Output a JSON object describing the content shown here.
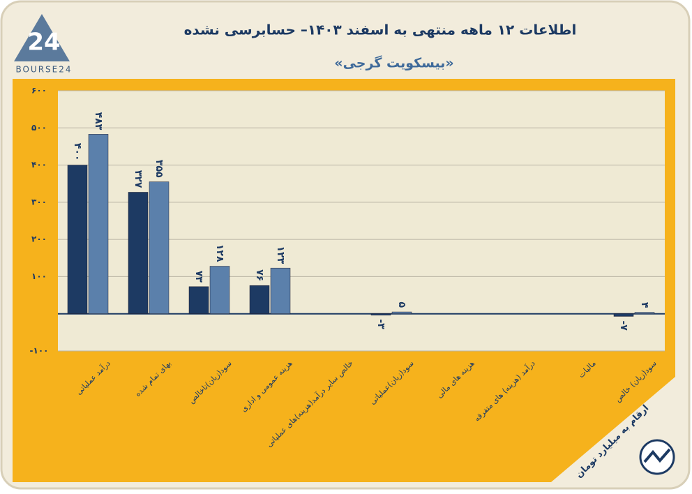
{
  "chart_data": {
    "type": "bar",
    "title": "اطلاعات ۱۲ ماهه منتهی به اسفند ۱۴۰۳– حسابرسی نشده",
    "subtitle": "«بیسکویت گرجی»",
    "logo": "BOURSE24",
    "logo_mark": "24",
    "note": "ارقام به میلیارد تومان",
    "categories": [
      "درآمد عملیاتی",
      "بهای تمام شده",
      "سود(زیان)ناخالص",
      "هزینه عمومی و اداری",
      "خالص سایر درآمد(هزینه)های عملیاتی",
      "سود(زیان)عملیاتی",
      "هزینه های مالی",
      "درآمد (هزینه) های متفرقه",
      "مالیات",
      "سود(زیان) خالص"
    ],
    "series": [
      {
        "color": "#1d3a63",
        "values": [
          400,
          327,
          73,
          76,
          null,
          -3,
          null,
          null,
          null,
          -7
        ],
        "value_labels": [
          "۴۰۰",
          "۳۲۷",
          "۷۳",
          "۷۶",
          null,
          "-۳",
          null,
          null,
          null,
          "-۷"
        ]
      },
      {
        "color": "#5b80ab",
        "values": [
          483,
          355,
          128,
          123,
          null,
          5,
          null,
          null,
          null,
          4
        ],
        "value_labels": [
          "۴۸۳",
          "۳۵۵",
          "۱۲۸",
          "۱۲۳",
          null,
          "۵",
          null,
          null,
          null,
          "۴"
        ]
      }
    ],
    "ylim": [
      -100,
      600
    ],
    "yticks": [
      {
        "value": -100,
        "label": "-۱۰۰"
      },
      {
        "value": 100,
        "label": "۱۰۰"
      },
      {
        "value": 200,
        "label": "۲۰۰"
      },
      {
        "value": 300,
        "label": "۳۰۰"
      },
      {
        "value": 400,
        "label": "۴۰۰"
      },
      {
        "value": 500,
        "label": "۵۰۰"
      },
      {
        "value": 600,
        "label": "۶۰۰"
      }
    ],
    "grid": true
  }
}
